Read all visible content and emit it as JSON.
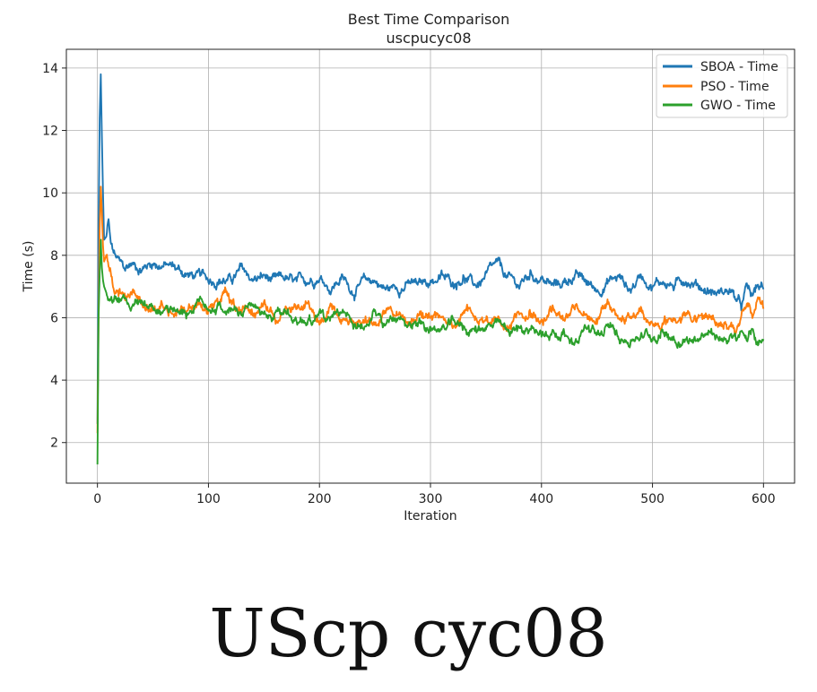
{
  "chart_data": {
    "type": "line",
    "title": "Best Time Comparison",
    "subtitle": "uscpucyc08",
    "xlabel": "Iteration",
    "ylabel": "Time (s)",
    "xlim": [
      -28,
      628
    ],
    "ylim": [
      0.7,
      14.6
    ],
    "xticks": [
      0,
      100,
      200,
      300,
      400,
      500,
      600
    ],
    "yticks": [
      2,
      4,
      6,
      8,
      10,
      12,
      14
    ],
    "grid": true,
    "legend_position": "top-right",
    "series": [
      {
        "name": "SBOA - Time",
        "color": "#1f77b4",
        "x": [
          0,
          1,
          2,
          3,
          4,
          5,
          6,
          8,
          10,
          12,
          15,
          20,
          25,
          30,
          40,
          50,
          60,
          70,
          80,
          90,
          100,
          110,
          120,
          130,
          140,
          150,
          160,
          170,
          180,
          190,
          200,
          210,
          220,
          230,
          240,
          250,
          260,
          270,
          280,
          290,
          300,
          310,
          320,
          330,
          340,
          350,
          360,
          370,
          380,
          390,
          400,
          410,
          420,
          430,
          440,
          450,
          460,
          470,
          480,
          490,
          500,
          510,
          520,
          530,
          540,
          550,
          560,
          570,
          575,
          580,
          585,
          590,
          595,
          600
        ],
        "values": [
          2.6,
          9.0,
          12.4,
          13.8,
          11.8,
          10.0,
          8.5,
          8.6,
          9.1,
          8.3,
          8.0,
          7.7,
          7.5,
          7.7,
          7.6,
          7.8,
          7.7,
          7.6,
          7.4,
          7.3,
          7.2,
          7.3,
          7.2,
          7.5,
          7.2,
          7.3,
          7.1,
          7.2,
          7.0,
          7.2,
          7.4,
          7.0,
          7.3,
          6.9,
          7.1,
          7.2,
          6.9,
          7.0,
          7.1,
          7.0,
          7.2,
          7.3,
          7.1,
          7.4,
          7.0,
          7.3,
          7.6,
          7.2,
          7.0,
          7.4,
          7.3,
          7.0,
          7.1,
          7.4,
          7.1,
          6.9,
          7.2,
          7.3,
          6.9,
          7.4,
          7.1,
          7.2,
          7.0,
          7.3,
          7.1,
          6.9,
          6.8,
          6.9,
          6.6,
          6.3,
          6.9,
          6.6,
          7.0,
          6.9
        ]
      },
      {
        "name": "PSO - Time",
        "color": "#ff7f0e",
        "x": [
          0,
          1,
          2,
          3,
          4,
          5,
          6,
          8,
          10,
          12,
          15,
          20,
          25,
          30,
          40,
          50,
          60,
          70,
          80,
          90,
          100,
          110,
          115,
          120,
          130,
          140,
          150,
          160,
          170,
          180,
          190,
          200,
          210,
          220,
          230,
          240,
          250,
          260,
          270,
          280,
          290,
          300,
          310,
          320,
          330,
          340,
          350,
          360,
          370,
          380,
          390,
          400,
          410,
          420,
          430,
          440,
          450,
          460,
          470,
          480,
          490,
          500,
          510,
          520,
          530,
          540,
          550,
          560,
          570,
          575,
          580,
          585,
          590,
          595,
          600
        ],
        "values": [
          2.3,
          6.0,
          8.8,
          10.2,
          9.4,
          8.3,
          7.8,
          8.0,
          7.6,
          7.4,
          7.0,
          6.9,
          6.6,
          6.8,
          6.5,
          6.5,
          6.4,
          6.3,
          6.3,
          6.4,
          6.2,
          6.3,
          6.9,
          6.4,
          6.2,
          6.1,
          6.2,
          6.0,
          6.2,
          6.1,
          6.4,
          5.9,
          6.3,
          6.0,
          6.1,
          6.2,
          5.8,
          6.1,
          6.0,
          5.9,
          6.2,
          5.9,
          6.1,
          5.8,
          6.4,
          6.0,
          5.9,
          6.1,
          5.8,
          6.1,
          6.3,
          6.0,
          6.2,
          5.9,
          6.4,
          6.1,
          6.0,
          6.2,
          6.0,
          5.9,
          6.3,
          5.8,
          5.9,
          6.0,
          6.1,
          5.9,
          6.0,
          5.9,
          5.9,
          5.7,
          6.0,
          6.2,
          6.0,
          6.6,
          6.3
        ]
      },
      {
        "name": "GWO - Time",
        "color": "#2ca02c",
        "x": [
          0,
          1,
          2,
          3,
          4,
          5,
          6,
          8,
          10,
          12,
          15,
          20,
          25,
          30,
          40,
          50,
          60,
          70,
          80,
          90,
          100,
          110,
          120,
          130,
          140,
          150,
          160,
          170,
          180,
          190,
          200,
          210,
          220,
          230,
          240,
          250,
          260,
          270,
          280,
          290,
          300,
          310,
          320,
          330,
          340,
          350,
          360,
          370,
          380,
          390,
          400,
          410,
          420,
          430,
          440,
          450,
          460,
          470,
          480,
          490,
          500,
          510,
          520,
          530,
          540,
          550,
          560,
          570,
          575,
          580,
          585,
          590,
          595,
          600
        ],
        "values": [
          1.3,
          6.0,
          7.4,
          8.5,
          7.6,
          7.2,
          7.0,
          6.8,
          6.7,
          6.6,
          6.5,
          6.4,
          6.5,
          6.3,
          6.4,
          6.3,
          6.2,
          6.4,
          6.2,
          6.5,
          6.4,
          6.3,
          6.2,
          6.1,
          6.3,
          6.0,
          6.1,
          6.2,
          5.9,
          6.0,
          6.1,
          5.8,
          6.0,
          5.9,
          5.8,
          6.0,
          5.7,
          5.9,
          5.8,
          5.9,
          5.7,
          5.6,
          5.8,
          5.7,
          5.6,
          5.8,
          5.7,
          5.5,
          5.6,
          5.7,
          5.4,
          5.6,
          5.5,
          5.3,
          5.7,
          5.4,
          5.6,
          5.5,
          5.3,
          5.5,
          5.4,
          5.6,
          5.4,
          5.3,
          5.4,
          5.5,
          5.3,
          5.4,
          5.2,
          5.4,
          5.3,
          5.5,
          5.2,
          5.3
        ]
      }
    ]
  },
  "caption": "UScp cyc08"
}
